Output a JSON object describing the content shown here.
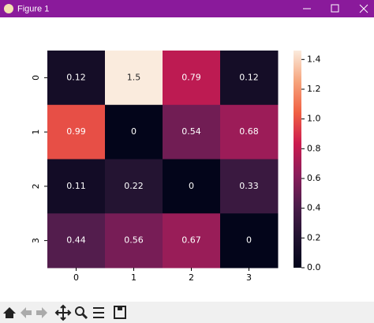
{
  "window": {
    "title": "Figure 1"
  },
  "chart_data": {
    "type": "heatmap",
    "x_categories": [
      "0",
      "1",
      "2",
      "3"
    ],
    "y_categories": [
      "0",
      "1",
      "2",
      "3"
    ],
    "values": [
      [
        0.12,
        1.5,
        0.79,
        0.12
      ],
      [
        0.99,
        0,
        0.54,
        0.68
      ],
      [
        0.11,
        0.22,
        0,
        0.33
      ],
      [
        0.44,
        0.56,
        0.67,
        0
      ]
    ],
    "clim": [
      0,
      1.46
    ],
    "cticks": [
      {
        "value": 0,
        "label": "0.0"
      },
      {
        "value": 0.2,
        "label": "0.2"
      },
      {
        "value": 0.4,
        "label": "0.4"
      },
      {
        "value": 0.6,
        "label": "0.6"
      },
      {
        "value": 0.8,
        "label": "0.8"
      },
      {
        "value": 1,
        "label": "1.0"
      },
      {
        "value": 1.2,
        "label": "1.2"
      },
      {
        "value": 1.4,
        "label": "1.4"
      }
    ],
    "colormap": [
      "#03051a",
      "#221331",
      "#4c1d4b",
      "#8b1d5b",
      "#cb1b4f",
      "#f06043",
      "#f6a47c",
      "#faebdd"
    ]
  }
}
